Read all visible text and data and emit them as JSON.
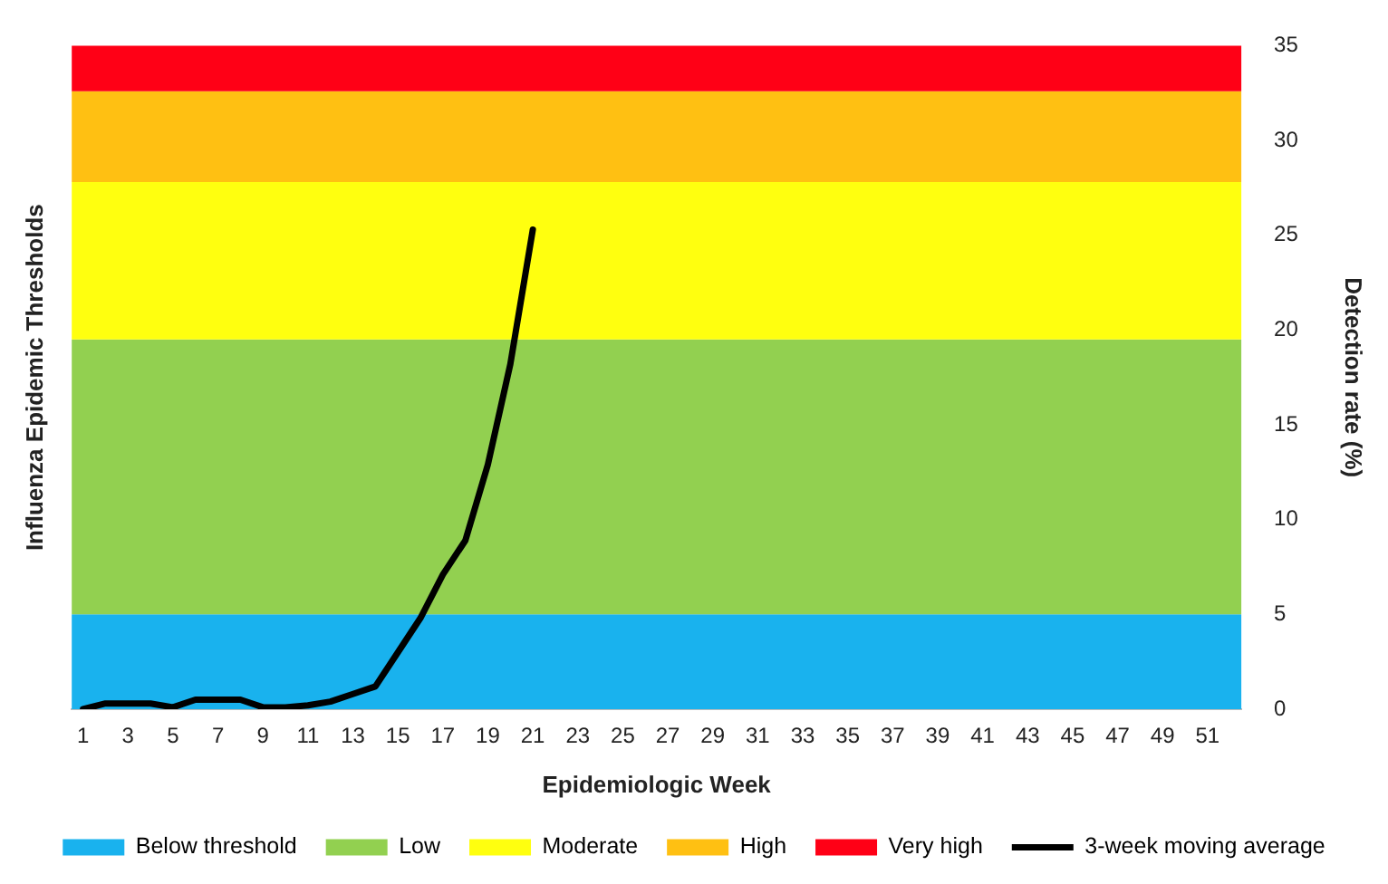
{
  "chart_data": {
    "type": "line",
    "xlabel": "Epidemiologic Week",
    "ylabel": "Influenza Epidemic Thresholds",
    "y2label": "Detection rate (%)",
    "x": [
      1,
      2,
      3,
      4,
      5,
      6,
      7,
      8,
      9,
      10,
      11,
      12,
      13,
      14,
      15,
      16,
      17,
      18,
      19,
      20,
      21
    ],
    "xlim": [
      0.5,
      52.5
    ],
    "xticks": [
      1,
      3,
      5,
      7,
      9,
      11,
      13,
      15,
      17,
      19,
      21,
      23,
      25,
      27,
      29,
      31,
      33,
      35,
      37,
      39,
      41,
      43,
      45,
      47,
      49,
      51
    ],
    "series": [
      {
        "name": "3-week moving average",
        "color": "#000000",
        "axis": "y2",
        "values": [
          0,
          0.3,
          0.3,
          0.3,
          0.1,
          0.5,
          0.5,
          0.5,
          0.1,
          0.1,
          0.2,
          0.4,
          0.8,
          1.2,
          3.0,
          4.8,
          7.1,
          8.9,
          12.9,
          18.2,
          25.3
        ]
      }
    ],
    "y2lim": [
      0,
      35
    ],
    "y2ticks": [
      0,
      5,
      10,
      15,
      20,
      25,
      30,
      35
    ],
    "bands": [
      {
        "axis": "y2",
        "from": 0,
        "to": 5,
        "label": "Below threshold",
        "color": "#19b2ee"
      },
      {
        "axis": "y2",
        "from": 5,
        "to": 19.5,
        "label": "Low",
        "color": "#92d050"
      },
      {
        "axis": "y2",
        "from": 19.5,
        "to": 27.8,
        "label": "Moderate",
        "color": "#ffff0f"
      },
      {
        "axis": "y2",
        "from": 27.8,
        "to": 32.6,
        "label": "High",
        "color": "#ffc012"
      },
      {
        "axis": "y2",
        "from": 32.6,
        "to": 35,
        "label": "Very high",
        "color": "#ff0016"
      }
    ],
    "grid": false,
    "legend": "bottom",
    "marker": "none",
    "line_style": "solid"
  }
}
